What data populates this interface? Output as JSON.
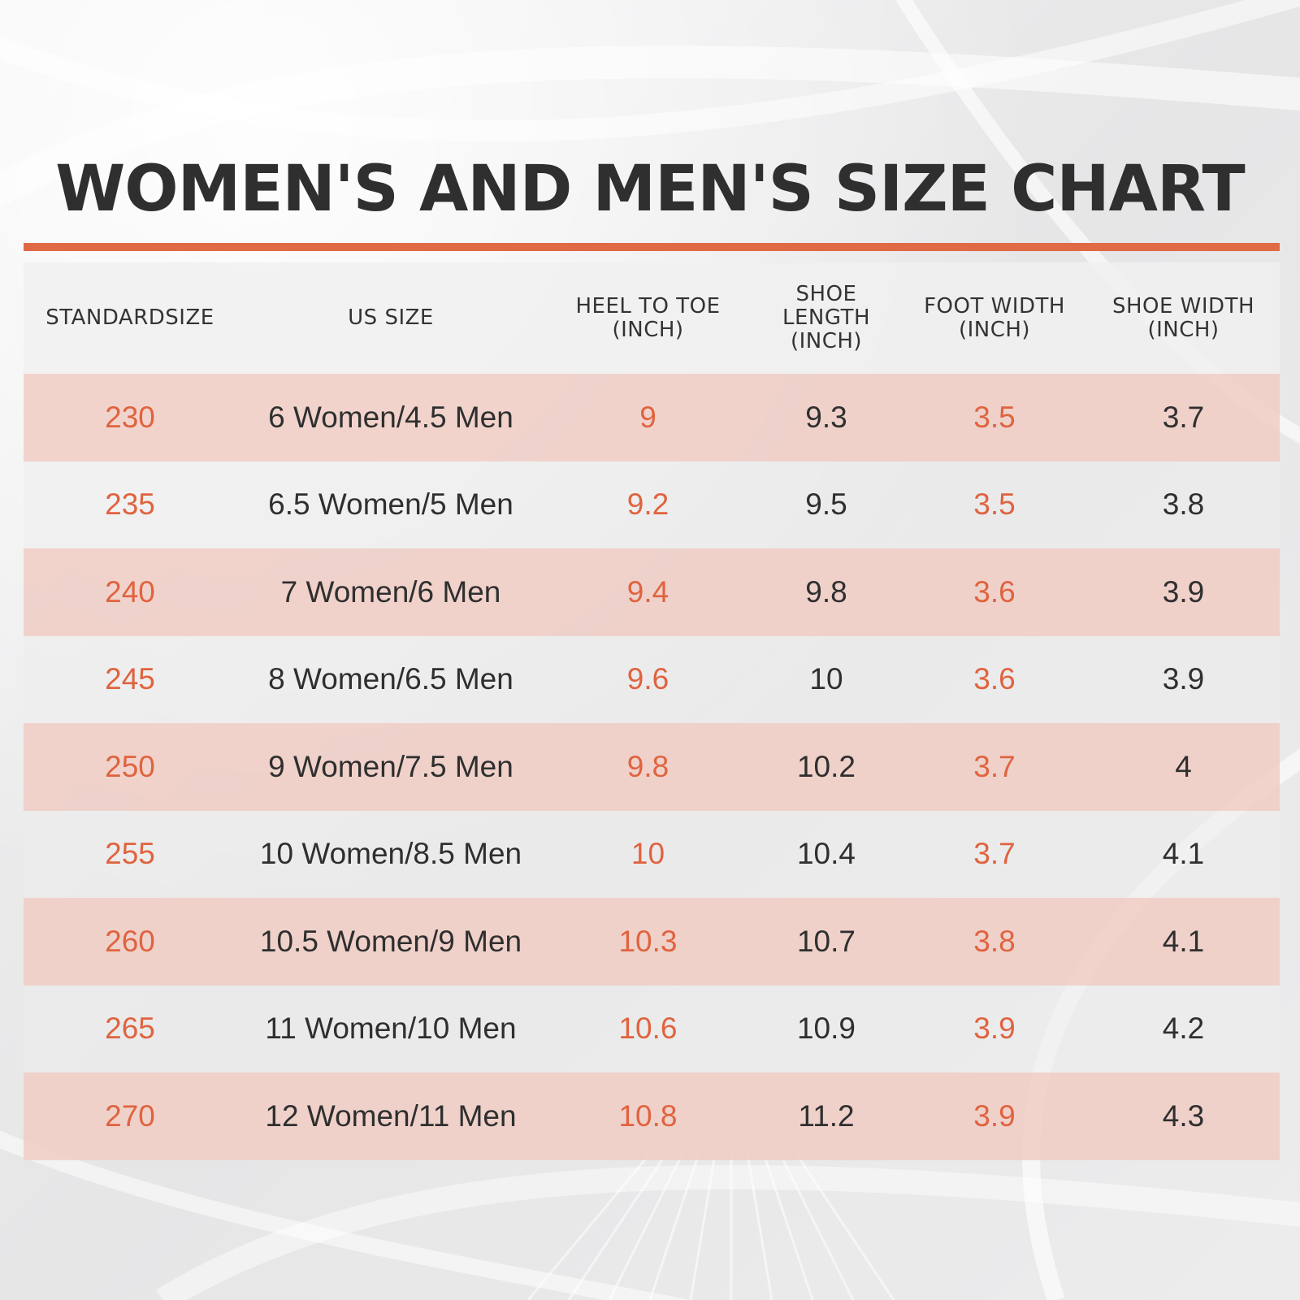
{
  "title": "WOMEN'S AND MEN'S SIZE CHART",
  "colors": {
    "accent": "#e06a46",
    "accent_text": "#e0633f",
    "dark_text": "#2f2f2f",
    "row_shade": "#f0ccc4",
    "background": "#e9e9ea"
  },
  "chart_data": {
    "type": "table",
    "columns": [
      "STANDARDSIZE",
      "US SIZE",
      "HEEL TO TOE\n(INCH)",
      "SHOE LENGTH\n(INCH)",
      "FOOT WIDTH\n(INCH)",
      "SHOE WIDTH\n(INCH)"
    ],
    "column_text_colors": [
      "accent",
      "dark",
      "accent",
      "dark",
      "accent",
      "dark"
    ],
    "rows": [
      [
        "230",
        "6 Women/4.5 Men",
        "9",
        "9.3",
        "3.5",
        "3.7"
      ],
      [
        "235",
        "6.5 Women/5 Men",
        "9.2",
        "9.5",
        "3.5",
        "3.8"
      ],
      [
        "240",
        "7 Women/6 Men",
        "9.4",
        "9.8",
        "3.6",
        "3.9"
      ],
      [
        "245",
        "8 Women/6.5 Men",
        "9.6",
        "10",
        "3.6",
        "3.9"
      ],
      [
        "250",
        "9 Women/7.5 Men",
        "9.8",
        "10.2",
        "3.7",
        "4"
      ],
      [
        "255",
        "10 Women/8.5 Men",
        "10",
        "10.4",
        "3.7",
        "4.1"
      ],
      [
        "260",
        "10.5 Women/9 Men",
        "10.3",
        "10.7",
        "3.8",
        "4.1"
      ],
      [
        "265",
        "11 Women/10 Men",
        "10.6",
        "10.9",
        "3.9",
        "4.2"
      ],
      [
        "270",
        "12 Women/11 Men",
        "10.8",
        "11.2",
        "3.9",
        "4.3"
      ]
    ]
  }
}
